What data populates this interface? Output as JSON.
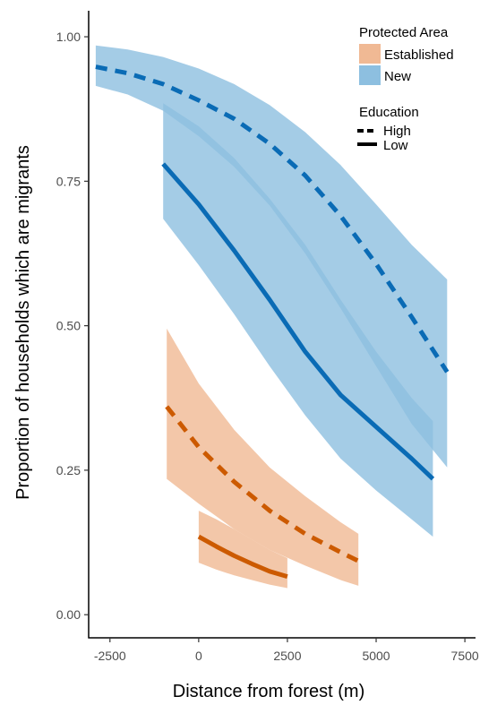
{
  "chart_data": {
    "type": "line",
    "xlabel": "Distance from forest (m)",
    "ylabel": "Proportion of households which are migrants",
    "xlim": [
      -3100,
      7800
    ],
    "ylim": [
      -0.04,
      1.045
    ],
    "x_ticks": [
      -2500,
      0,
      2500,
      5000,
      7500
    ],
    "x_tick_labels": [
      "-2500",
      "0",
      "2500",
      "5000",
      "7500"
    ],
    "y_ticks": [
      0,
      0.25,
      0.5,
      0.75,
      1.0
    ],
    "y_tick_labels": [
      "0.00",
      "0.25",
      "0.50",
      "0.75",
      "1.00"
    ],
    "grid": false,
    "legend": {
      "placement": "top-right",
      "fill_title": "Protected Area",
      "fill_entries": [
        {
          "label": "Established",
          "color": "#f0b994"
        },
        {
          "label": "New",
          "color": "#8dbfe0"
        }
      ],
      "linetype_title": "Education",
      "linetype_entries": [
        {
          "label": "High",
          "dash": "dashed"
        },
        {
          "label": "Low",
          "dash": "solid"
        }
      ]
    },
    "series": [
      {
        "protected_area": "New",
        "education": "High",
        "line_color": "#0a6bb5",
        "band_color": "#8dbfe0",
        "x": [
          -2900,
          -2000,
          -1000,
          0,
          1000,
          2000,
          3000,
          4000,
          5000,
          6000,
          7000
        ],
        "y": [
          0.948,
          0.937,
          0.918,
          0.89,
          0.858,
          0.815,
          0.76,
          0.69,
          0.607,
          0.515,
          0.42
        ],
        "lower": [
          0.915,
          0.9,
          0.872,
          0.828,
          0.775,
          0.708,
          0.625,
          0.53,
          0.43,
          0.33,
          0.255
        ],
        "upper": [
          0.985,
          0.978,
          0.965,
          0.945,
          0.918,
          0.882,
          0.835,
          0.778,
          0.71,
          0.64,
          0.58
        ]
      },
      {
        "protected_area": "New",
        "education": "Low",
        "line_color": "#0a6bb5",
        "band_color": "#8dbfe0",
        "x": [
          -1000,
          0,
          1000,
          2000,
          3000,
          4000,
          5000,
          6000,
          6600
        ],
        "y": [
          0.78,
          0.71,
          0.63,
          0.545,
          0.455,
          0.38,
          0.325,
          0.27,
          0.235
        ],
        "lower": [
          0.685,
          0.605,
          0.52,
          0.43,
          0.345,
          0.27,
          0.215,
          0.165,
          0.135
        ],
        "upper": [
          0.885,
          0.845,
          0.79,
          0.72,
          0.64,
          0.545,
          0.455,
          0.375,
          0.335
        ]
      },
      {
        "protected_area": "Established",
        "education": "High",
        "line_color": "#cc5a00",
        "band_color": "#f0b994",
        "x": [
          -900,
          0,
          1000,
          2000,
          3000,
          4000,
          4500
        ],
        "y": [
          0.36,
          0.29,
          0.23,
          0.18,
          0.14,
          0.108,
          0.093
        ],
        "lower": [
          0.235,
          0.192,
          0.148,
          0.112,
          0.085,
          0.06,
          0.05
        ],
        "upper": [
          0.495,
          0.4,
          0.32,
          0.255,
          0.205,
          0.16,
          0.14
        ]
      },
      {
        "protected_area": "Established",
        "education": "Low",
        "line_color": "#cc5a00",
        "band_color": "#f0b994",
        "x": [
          0,
          500,
          1000,
          1500,
          2000,
          2500
        ],
        "y": [
          0.135,
          0.118,
          0.102,
          0.088,
          0.075,
          0.066
        ],
        "lower": [
          0.09,
          0.078,
          0.068,
          0.06,
          0.052,
          0.046
        ],
        "upper": [
          0.18,
          0.165,
          0.148,
          0.13,
          0.112,
          0.098
        ]
      }
    ]
  }
}
